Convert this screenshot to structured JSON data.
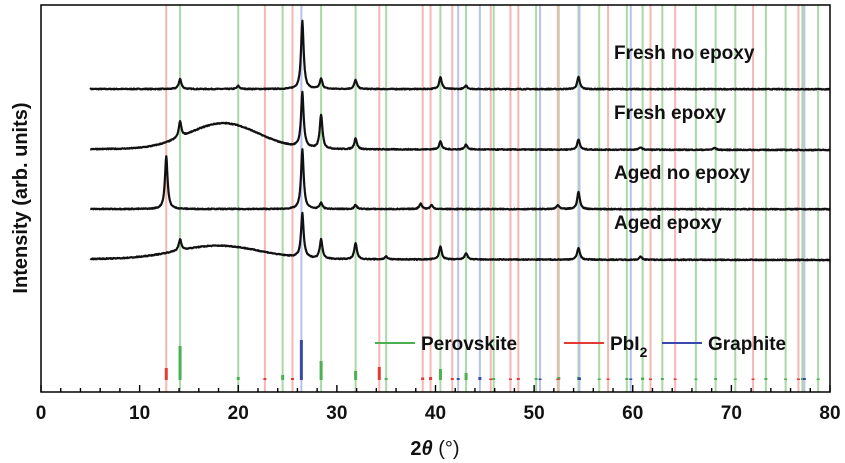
{
  "chart_data": {
    "type": "line",
    "title": "",
    "xlabel_main": "2",
    "xlabel_theta": "θ",
    "xlabel_unit": " (°)",
    "ylabel": "Intensity (arb. units)",
    "xlim": [
      0,
      80
    ],
    "xticks": [
      0,
      10,
      20,
      30,
      40,
      50,
      60,
      70,
      80
    ],
    "x_minor_step": 2,
    "series": [
      {
        "name": "Fresh no epoxy",
        "offset": 0.0,
        "baseline": [
          [
            5,
            0
          ],
          [
            80,
            -0.02
          ]
        ],
        "hump": null,
        "peaks": [
          [
            14.1,
            1.0
          ],
          [
            20.0,
            0.3
          ],
          [
            26.5,
            6.8
          ],
          [
            28.4,
            1.0
          ],
          [
            31.9,
            0.9
          ],
          [
            40.5,
            1.2
          ],
          [
            43.1,
            0.35
          ],
          [
            54.5,
            1.2
          ]
        ]
      },
      {
        "name": "Fresh epoxy",
        "offset": -6.0,
        "baseline": [
          [
            5,
            0
          ],
          [
            80,
            -0.1
          ]
        ],
        "hump": [
          18.5,
          5.0,
          2.6
        ],
        "peaks": [
          [
            14.1,
            1.6
          ],
          [
            26.5,
            5.5
          ],
          [
            28.4,
            3.4
          ],
          [
            31.9,
            1.1
          ],
          [
            40.5,
            0.8
          ],
          [
            43.1,
            0.5
          ],
          [
            54.5,
            1.0
          ],
          [
            60.8,
            0.25
          ],
          [
            68.3,
            0.2
          ]
        ]
      },
      {
        "name": "Aged no epoxy",
        "offset": -12.0,
        "baseline": [
          [
            5,
            0
          ],
          [
            80,
            -0.02
          ]
        ],
        "hump": null,
        "peaks": [
          [
            12.7,
            5.3
          ],
          [
            26.5,
            6.0
          ],
          [
            28.4,
            0.6
          ],
          [
            31.9,
            0.4
          ],
          [
            38.5,
            0.55
          ],
          [
            39.6,
            0.4
          ],
          [
            52.4,
            0.4
          ],
          [
            54.5,
            1.7
          ]
        ]
      },
      {
        "name": "Aged epoxy",
        "offset": -17.0,
        "baseline": [
          [
            5,
            0
          ],
          [
            80,
            -0.1
          ]
        ],
        "hump": [
          18.0,
          6.0,
          1.35
        ],
        "peaks": [
          [
            14.1,
            1.1
          ],
          [
            26.5,
            4.4
          ],
          [
            28.4,
            1.9
          ],
          [
            31.9,
            1.6
          ],
          [
            35.0,
            0.3
          ],
          [
            40.5,
            1.3
          ],
          [
            43.1,
            0.65
          ],
          [
            54.5,
            1.2
          ],
          [
            60.8,
            0.3
          ]
        ]
      }
    ],
    "reference_phases": [
      {
        "name": "Perovskite",
        "color": "#4caf50",
        "line_color": "#a9d9a5",
        "peaks": [
          [
            14.1,
            3.4
          ],
          [
            20.0,
            0.3
          ],
          [
            24.5,
            0.5
          ],
          [
            28.4,
            1.9
          ],
          [
            31.9,
            0.9
          ],
          [
            35.0,
            0.2
          ],
          [
            40.5,
            1.1
          ],
          [
            43.1,
            0.7
          ],
          [
            45.9,
            0.2
          ],
          [
            50.2,
            0.2
          ],
          [
            52.5,
            0.3
          ],
          [
            54.5,
            0.3
          ],
          [
            56.6,
            0.15
          ],
          [
            59.4,
            0.2
          ],
          [
            61.0,
            0.25
          ],
          [
            63.0,
            0.2
          ],
          [
            66.4,
            0.15
          ],
          [
            68.4,
            0.2
          ],
          [
            70.4,
            0.15
          ],
          [
            73.5,
            0.2
          ],
          [
            75.5,
            0.15
          ],
          [
            77.2,
            0.2
          ],
          [
            78.8,
            0.15
          ]
        ]
      },
      {
        "name": "PbI",
        "name_sub": "2",
        "color": "#e53935",
        "line_color": "#f5b7b4",
        "peaks": [
          [
            12.7,
            1.2
          ],
          [
            22.7,
            0.2
          ],
          [
            25.5,
            0.2
          ],
          [
            34.3,
            1.3
          ],
          [
            38.7,
            0.25
          ],
          [
            39.5,
            0.3
          ],
          [
            41.7,
            0.2
          ],
          [
            45.6,
            0.15
          ],
          [
            47.6,
            0.15
          ],
          [
            48.4,
            0.2
          ],
          [
            52.4,
            0.15
          ],
          [
            57.5,
            0.15
          ],
          [
            61.8,
            0.15
          ],
          [
            64.3,
            0.15
          ],
          [
            72.2,
            0.15
          ],
          [
            76.8,
            0.15
          ]
        ]
      },
      {
        "name": "Graphite",
        "color": "#3949ab",
        "line_color": "#b7c3e8",
        "peaks": [
          [
            26.4,
            4.0
          ],
          [
            42.3,
            0.2
          ],
          [
            44.5,
            0.3
          ],
          [
            50.6,
            0.15
          ],
          [
            54.6,
            0.25
          ],
          [
            59.8,
            0.15
          ],
          [
            77.4,
            0.2
          ]
        ]
      }
    ]
  }
}
